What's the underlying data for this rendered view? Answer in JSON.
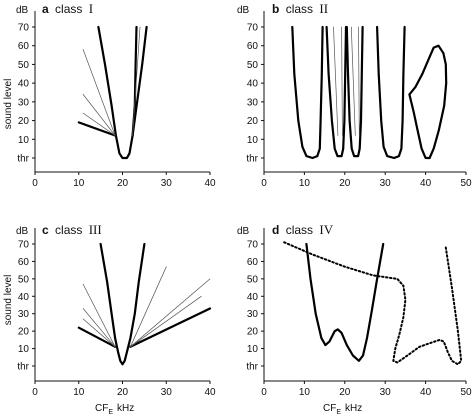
{
  "figure": {
    "ylabel": "sound level",
    "xlabel_main": "CF",
    "xlabel_sub": "E",
    "xlabel_unit": "kHz"
  },
  "chart_data": [
    {
      "type": "line",
      "letter": "a",
      "class_word": "class",
      "class_roman": "I",
      "y_unit": "dB",
      "y_ticks": [
        "thr",
        "10",
        "20",
        "30",
        "40",
        "50",
        "60",
        "70"
      ],
      "x_ticks": [
        "0",
        "10",
        "20",
        "30",
        "40"
      ],
      "xlim": [
        0,
        40
      ],
      "ylim": [
        0,
        70
      ],
      "series": [
        {
          "style": "thick",
          "points": [
            [
              14.5,
              70
            ],
            [
              16,
              50
            ],
            [
              17.5,
              28
            ],
            [
              18.5,
              12
            ],
            [
              19.3,
              2.5
            ],
            [
              20,
              0
            ],
            [
              21,
              0
            ],
            [
              21.6,
              2.5
            ],
            [
              22.3,
              12
            ],
            [
              22.8,
              28
            ],
            [
              23,
              50
            ],
            [
              23.2,
              70
            ]
          ]
        },
        {
          "style": "thick",
          "points": [
            [
              10,
              19
            ],
            [
              18.3,
              12
            ]
          ]
        },
        {
          "style": "thin",
          "points": [
            [
              11,
              58
            ],
            [
              18.3,
              12
            ]
          ]
        },
        {
          "style": "thin",
          "points": [
            [
              11,
              34
            ],
            [
              18.3,
              12
            ]
          ]
        },
        {
          "style": "thin",
          "points": [
            [
              11,
              24
            ],
            [
              18.3,
              12
            ]
          ]
        },
        {
          "style": "thick",
          "points": [
            [
              22.3,
              12
            ],
            [
              24.5,
              50
            ],
            [
              25.5,
              70
            ]
          ]
        },
        {
          "style": "thin",
          "points": [
            [
              22.3,
              12
            ],
            [
              24,
              70
            ]
          ]
        }
      ]
    },
    {
      "type": "line",
      "letter": "b",
      "class_word": "class",
      "class_roman": "II",
      "y_unit": "dB",
      "y_ticks": [
        "thr",
        "10",
        "20",
        "30",
        "40",
        "50",
        "60",
        "70"
      ],
      "x_ticks": [
        "0",
        "10",
        "20",
        "30",
        "40",
        "50"
      ],
      "xlim": [
        0,
        50
      ],
      "ylim": [
        0,
        70
      ],
      "series": [
        {
          "style": "thick",
          "points": [
            [
              7,
              70
            ],
            [
              7.5,
              45
            ],
            [
              8.5,
              20
            ],
            [
              9.5,
              6
            ],
            [
              10.5,
              1
            ],
            [
              12,
              0
            ],
            [
              13.2,
              1
            ],
            [
              13.8,
              5
            ],
            [
              14,
              20
            ],
            [
              14.3,
              45
            ],
            [
              14.5,
              70
            ]
          ]
        },
        {
          "style": "thick",
          "points": [
            [
              15.5,
              70
            ],
            [
              16,
              45
            ],
            [
              16.8,
              20
            ],
            [
              17.5,
              5
            ],
            [
              18.2,
              1
            ],
            [
              19.2,
              1
            ],
            [
              19.6,
              5
            ],
            [
              19.9,
              20
            ],
            [
              20.1,
              45
            ],
            [
              20.3,
              70
            ]
          ]
        },
        {
          "style": "thin",
          "points": [
            [
              17.2,
              70
            ],
            [
              18.3,
              12
            ]
          ]
        },
        {
          "style": "thin",
          "points": [
            [
              19.2,
              70
            ],
            [
              19.4,
              12
            ]
          ]
        },
        {
          "style": "thick",
          "points": [
            [
              20.5,
              70
            ],
            [
              20.8,
              45
            ],
            [
              21.2,
              20
            ],
            [
              21.7,
              5
            ],
            [
              22.3,
              1
            ],
            [
              23.3,
              1
            ],
            [
              23.7,
              5
            ],
            [
              24,
              20
            ],
            [
              24.2,
              45
            ],
            [
              24.4,
              70
            ]
          ]
        },
        {
          "style": "thin",
          "points": [
            [
              21.6,
              70
            ],
            [
              22.6,
              12
            ]
          ]
        },
        {
          "style": "thin",
          "points": [
            [
              23.4,
              70
            ],
            [
              23.6,
              12
            ]
          ]
        },
        {
          "style": "thick",
          "points": [
            [
              28,
              70
            ],
            [
              28.4,
              45
            ],
            [
              29,
              20
            ],
            [
              29.6,
              6
            ],
            [
              30.5,
              1
            ],
            [
              32.2,
              0
            ],
            [
              33.4,
              1
            ],
            [
              34,
              5
            ],
            [
              34.3,
              20
            ],
            [
              34.5,
              45
            ],
            [
              34.8,
              70
            ]
          ]
        },
        {
          "style": "thick",
          "points": [
            [
              36,
              34
            ],
            [
              37,
              25
            ],
            [
              38,
              15
            ],
            [
              39,
              5
            ],
            [
              40,
              0
            ],
            [
              41,
              0
            ],
            [
              42,
              5
            ],
            [
              43.3,
              15
            ],
            [
              44.6,
              28
            ],
            [
              45.1,
              40
            ],
            [
              45,
              50
            ],
            [
              44.4,
              56
            ],
            [
              43.2,
              60
            ],
            [
              42,
              59
            ],
            [
              40.8,
              53
            ],
            [
              39.2,
              45
            ],
            [
              37.5,
              38
            ],
            [
              36,
              34
            ]
          ]
        }
      ]
    },
    {
      "type": "line",
      "letter": "c",
      "class_word": "class",
      "class_roman": "III",
      "y_unit": "dB",
      "y_ticks": [
        "thr",
        "10",
        "20",
        "30",
        "40",
        "50",
        "60",
        "70"
      ],
      "x_ticks": [
        "0",
        "10",
        "20",
        "30",
        "40"
      ],
      "xlim": [
        0,
        40
      ],
      "ylim": [
        0,
        70
      ],
      "series": [
        {
          "style": "thick",
          "points": [
            [
              15,
              70
            ],
            [
              16.5,
              48
            ],
            [
              17.5,
              30
            ],
            [
              18.3,
              16
            ],
            [
              19,
              8
            ],
            [
              19.5,
              3
            ],
            [
              20,
              1
            ],
            [
              20.5,
              3
            ],
            [
              21,
              8
            ],
            [
              21.8,
              16
            ],
            [
              22.8,
              30
            ],
            [
              23.7,
              48
            ],
            [
              25,
              70
            ]
          ]
        },
        {
          "style": "thick",
          "points": [
            [
              10,
              22
            ],
            [
              18.3,
              11
            ]
          ]
        },
        {
          "style": "thin",
          "points": [
            [
              11,
              47
            ],
            [
              18.3,
              11
            ]
          ]
        },
        {
          "style": "thin",
          "points": [
            [
              11,
              33
            ],
            [
              18.3,
              11
            ]
          ]
        },
        {
          "style": "thin",
          "points": [
            [
              11,
              27
            ],
            [
              18.3,
              11
            ]
          ]
        },
        {
          "style": "thick",
          "points": [
            [
              21.8,
              11
            ],
            [
              40,
              33
            ]
          ]
        },
        {
          "style": "thin",
          "points": [
            [
              21.8,
              11
            ],
            [
              30,
              57
            ]
          ]
        },
        {
          "style": "thin",
          "points": [
            [
              21.8,
              11
            ],
            [
              40,
              50
            ]
          ]
        },
        {
          "style": "thin",
          "points": [
            [
              21.8,
              11
            ],
            [
              38,
              40
            ]
          ]
        }
      ]
    },
    {
      "type": "line",
      "letter": "d",
      "class_word": "class",
      "class_roman": "IV",
      "y_unit": "dB",
      "y_ticks": [
        "thr",
        "10",
        "20",
        "30",
        "40",
        "50",
        "60",
        "70"
      ],
      "x_ticks": [
        "0",
        "10",
        "20",
        "30",
        "40",
        "50"
      ],
      "xlim": [
        0,
        50
      ],
      "ylim": [
        0,
        70
      ],
      "series": [
        {
          "style": "thick",
          "points": [
            [
              10.5,
              70
            ],
            [
              11.5,
              50
            ],
            [
              12.8,
              30
            ],
            [
              14.2,
              16
            ],
            [
              15.2,
              12
            ],
            [
              16.2,
              14
            ],
            [
              17.5,
              20
            ],
            [
              18.3,
              21
            ],
            [
              19.2,
              19
            ],
            [
              20.5,
              12
            ],
            [
              22,
              6
            ],
            [
              23.5,
              3
            ],
            [
              24.5,
              6
            ],
            [
              25.5,
              16
            ],
            [
              26.7,
              32
            ],
            [
              28,
              50
            ],
            [
              29.5,
              70
            ]
          ]
        },
        {
          "style": "dotted",
          "points": [
            [
              5,
              71
            ],
            [
              12,
              64
            ],
            [
              20,
              57
            ],
            [
              27,
              52
            ],
            [
              33,
              50
            ],
            [
              34.5,
              46
            ],
            [
              35,
              38
            ],
            [
              34.5,
              28
            ],
            [
              33.5,
              18
            ],
            [
              32.5,
              10
            ],
            [
              32,
              3
            ],
            [
              33,
              2
            ],
            [
              35.5,
              6
            ],
            [
              38.5,
              11
            ],
            [
              41.5,
              13.5
            ],
            [
              43.5,
              15
            ],
            [
              44.5,
              14
            ],
            [
              45.5,
              8
            ],
            [
              46.5,
              3
            ],
            [
              48,
              1
            ],
            [
              48.8,
              3
            ],
            [
              48,
              20
            ],
            [
              46.5,
              45
            ],
            [
              45,
              68
            ]
          ]
        }
      ]
    }
  ]
}
